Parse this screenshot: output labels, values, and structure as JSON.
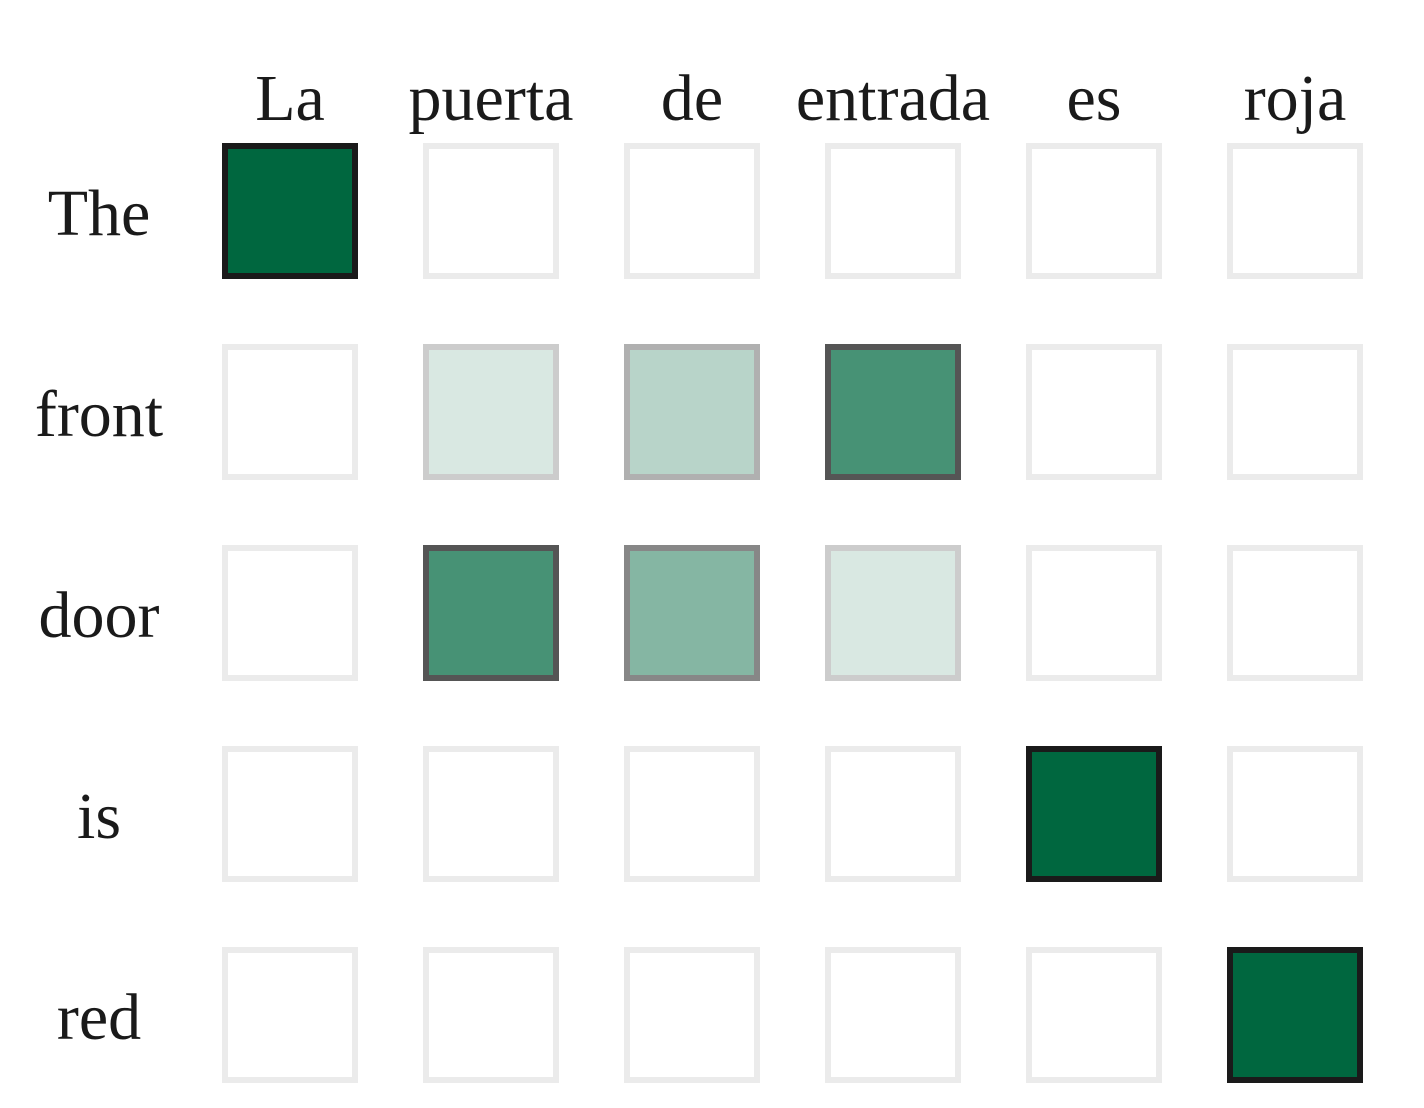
{
  "chart_data": {
    "type": "heatmap",
    "title": "",
    "xlabel": "",
    "ylabel": "",
    "x_categories": [
      "La",
      "puerta",
      "de",
      "entrada",
      "es",
      "roja"
    ],
    "y_categories": [
      "The",
      "front",
      "door",
      "is",
      "red"
    ],
    "value_range": [
      0,
      1
    ],
    "grid": false,
    "legend": "none",
    "values": [
      [
        1.0,
        0.0,
        0.0,
        0.0,
        0.0,
        0.0
      ],
      [
        0.0,
        0.15,
        0.28,
        0.72,
        0.0,
        0.0
      ],
      [
        0.0,
        0.72,
        0.48,
        0.15,
        0.0,
        0.0
      ],
      [
        0.0,
        0.0,
        0.0,
        0.0,
        1.0,
        0.0
      ],
      [
        0.0,
        0.0,
        0.0,
        0.0,
        0.0,
        1.0
      ]
    ],
    "colors": {
      "high": "#00673f",
      "low": "#ffffff",
      "empty_border": "#ebebeb",
      "strong_border": "#1a1a1a",
      "text": "#1a1a1a"
    }
  }
}
